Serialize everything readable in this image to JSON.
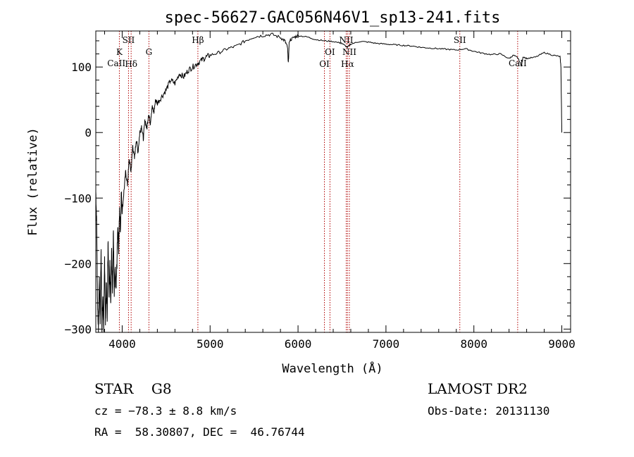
{
  "chart_data": {
    "type": "line",
    "title": "spec-56627-GAC056N46V1_sp13-241.fits",
    "xlabel": "Wavelength (Å)",
    "ylabel": "Flux (relative)",
    "xlim": [
      3700,
      9100
    ],
    "ylim": [
      -305,
      155
    ],
    "xticks": [
      4000,
      5000,
      6000,
      7000,
      8000,
      9000
    ],
    "yticks": [
      -300,
      -200,
      -100,
      0,
      100
    ],
    "grid": false,
    "series": [
      {
        "x": [
          3700,
          3710,
          3720,
          3730,
          3740,
          3750,
          3760,
          3770,
          3780,
          3790,
          3800,
          3810,
          3820,
          3830,
          3840,
          3850,
          3860,
          3870,
          3880,
          3890,
          3900,
          3910,
          3920,
          3930,
          3940,
          3950,
          3960,
          3970,
          3980,
          3990,
          4000,
          4020,
          4040,
          4060,
          4080,
          4100,
          4120,
          4140,
          4160,
          4180,
          4200,
          4220,
          4240,
          4260,
          4280,
          4300,
          4320,
          4340,
          4360,
          4380,
          4400,
          4450,
          4500,
          4550,
          4600,
          4650,
          4700,
          4750,
          4800,
          4850,
          4900,
          4950,
          5000,
          5100,
          5200,
          5300,
          5400,
          5500,
          5600,
          5700,
          5800,
          5850,
          5880,
          5890,
          5900,
          5950,
          6000,
          6100,
          6200,
          6300,
          6400,
          6500,
          6560,
          6600,
          6700,
          6800,
          6900,
          7000,
          7100,
          7200,
          7300,
          7400,
          7500,
          7600,
          7700,
          7800,
          7900,
          8000,
          8100,
          8200,
          8300,
          8400,
          8450,
          8500,
          8540,
          8560,
          8600,
          8700,
          8800,
          8900,
          8980,
          8990,
          9000
        ],
        "y": [
          -90,
          -140,
          -260,
          -300,
          -220,
          -290,
          -180,
          -300,
          -250,
          -300,
          -190,
          -290,
          -230,
          -280,
          -160,
          -250,
          -200,
          -260,
          -180,
          -240,
          -150,
          -250,
          -210,
          -240,
          -200,
          -140,
          -180,
          -120,
          -150,
          -90,
          -120,
          -90,
          -60,
          -80,
          -40,
          -60,
          -20,
          -40,
          -10,
          -30,
          0,
          10,
          -10,
          20,
          5,
          30,
          15,
          40,
          30,
          50,
          45,
          55,
          65,
          80,
          75,
          90,
          85,
          95,
          100,
          105,
          110,
          115,
          118,
          122,
          128,
          132,
          140,
          146,
          148,
          150,
          145,
          140,
          130,
          105,
          140,
          145,
          148,
          146,
          142,
          140,
          139,
          136,
          130,
          135,
          139,
          138,
          136,
          135,
          134,
          133,
          132,
          130,
          129,
          128,
          127,
          126,
          128,
          124,
          121,
          119,
          120,
          113,
          118,
          114,
          102,
          116,
          113,
          115,
          122,
          118,
          116,
          100,
          0
        ]
      }
    ],
    "line_markers": [
      {
        "label": "CaII",
        "x": 3934,
        "style": "label-only"
      },
      {
        "label": "K",
        "x": 3968
      },
      {
        "label": "SII",
        "x": 4072
      },
      {
        "label": "Hδ",
        "x": 4102
      },
      {
        "label": "G",
        "x": 4304
      },
      {
        "label": "Hβ",
        "x": 4861
      },
      {
        "label": "OI",
        "x": 6300
      },
      {
        "label": "OI",
        "x": 6363
      },
      {
        "label": "NII",
        "x": 6548
      },
      {
        "label": "Hα",
        "x": 6563
      },
      {
        "label": "NII",
        "x": 6584
      },
      {
        "label": "SII",
        "x": 7840
      },
      {
        "label": "CaII",
        "x": 8498
      }
    ]
  },
  "info": {
    "object_type": "STAR    G8",
    "survey": "LAMOST DR2",
    "cz": "cz = −78.3 ± 8.8 km/s",
    "obs_date": "Obs-Date: 20131130",
    "radec": "RA =  58.30807, DEC =  46.76744"
  },
  "colors": {
    "spectrum": "#000000",
    "marker_line": "#b00000",
    "axis": "#000000"
  }
}
